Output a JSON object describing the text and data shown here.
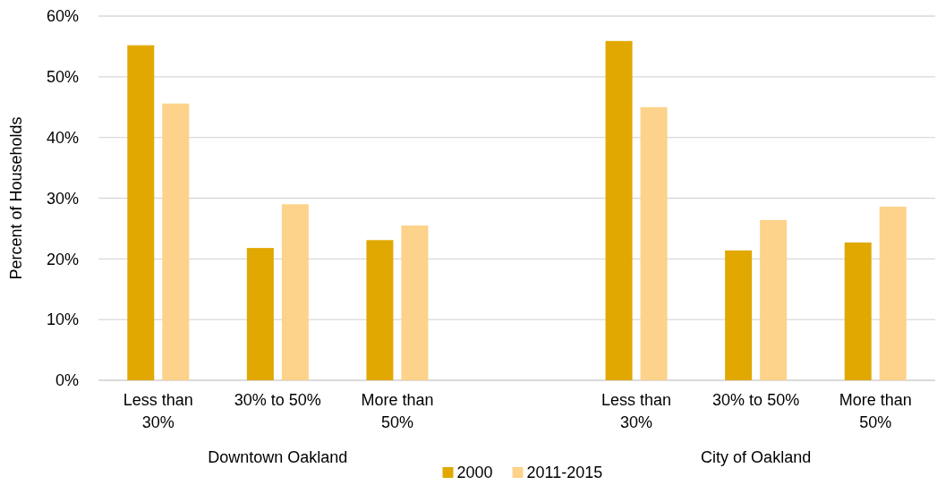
{
  "chart_data": {
    "type": "bar",
    "ylabel": "Percent of Households",
    "categories": [
      "Less than 30%",
      "30% to 50%",
      "More than 50%",
      null,
      "Less than 30%",
      "30% to 50%",
      "More than 50%"
    ],
    "series": [
      {
        "name": "2000",
        "color": "#e0a800",
        "values": [
          55.2,
          21.8,
          23.1,
          null,
          55.9,
          21.4,
          22.7
        ]
      },
      {
        "name": "2011-2015",
        "color": "#fdd28a",
        "values": [
          45.6,
          29.0,
          25.5,
          null,
          45.0,
          26.4,
          28.6
        ]
      }
    ],
    "annotations": [
      "Downtown Oakland",
      "City of Oakland"
    ],
    "ylim": [
      0,
      60
    ],
    "yticks": [
      {
        "value": 0,
        "label": "0%"
      },
      {
        "value": 10,
        "label": "10%"
      },
      {
        "value": 20,
        "label": "20%"
      },
      {
        "value": 30,
        "label": "30%"
      },
      {
        "value": 40,
        "label": "40%"
      },
      {
        "value": 50,
        "label": "50%"
      },
      {
        "value": 60,
        "label": "60%"
      }
    ],
    "grid": "y",
    "legend": "bottom"
  }
}
